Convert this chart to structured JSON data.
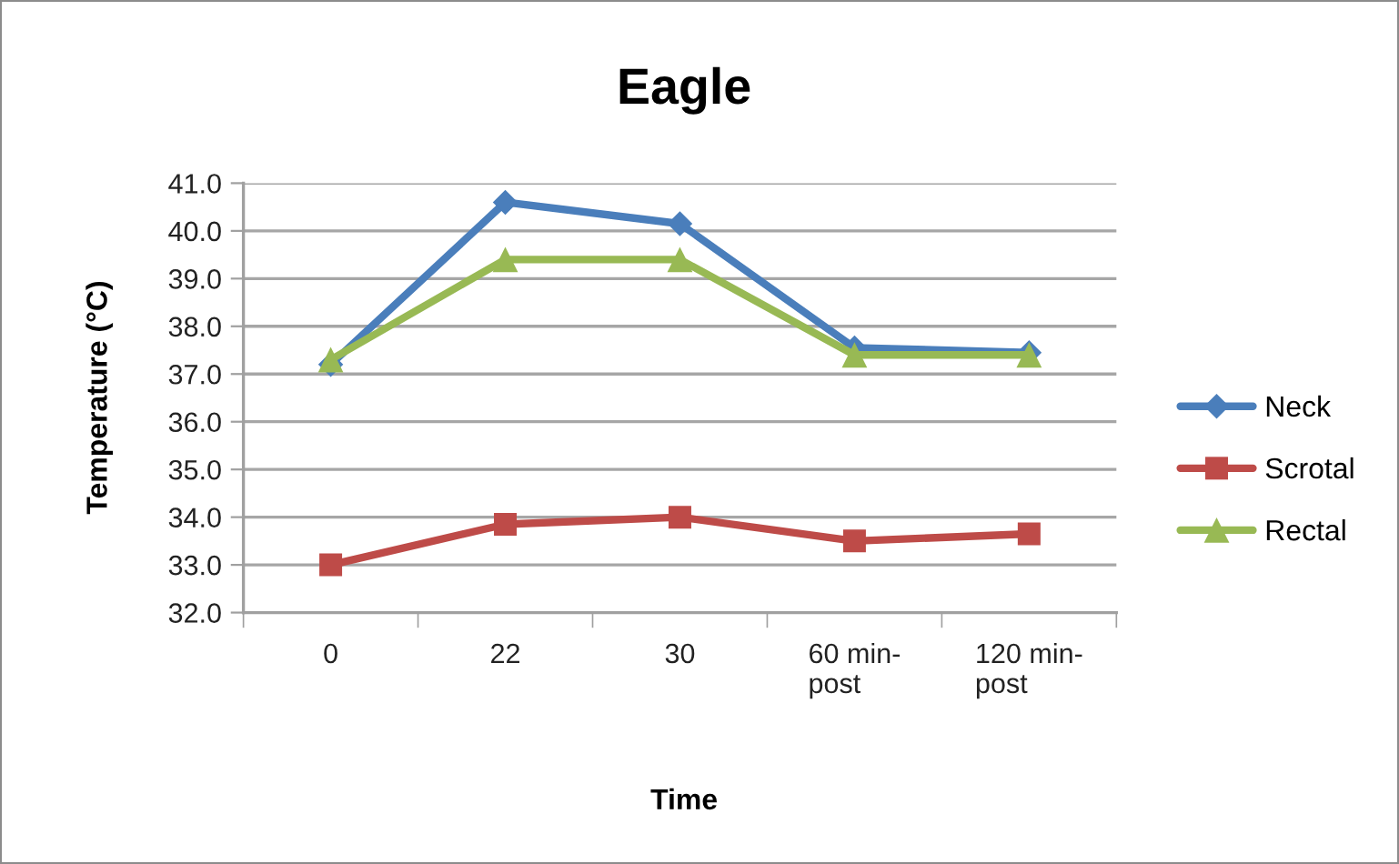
{
  "chart_data": {
    "type": "line",
    "title": "Eagle",
    "xlabel": "Time",
    "ylabel": "Temperature (°C)",
    "categories": [
      "0",
      "22",
      "30",
      "60 min-post",
      "120 min-post"
    ],
    "series": [
      {
        "name": "Neck",
        "color": "#4a7ebb",
        "marker": "diamond",
        "values": [
          37.2,
          40.6,
          40.15,
          37.55,
          37.45
        ]
      },
      {
        "name": "Scrotal",
        "color": "#be4b48",
        "marker": "square",
        "values": [
          33.0,
          33.85,
          34.0,
          33.5,
          33.65
        ]
      },
      {
        "name": "Rectal",
        "color": "#98b954",
        "marker": "triangle",
        "values": [
          37.3,
          39.4,
          39.4,
          37.4,
          37.4
        ]
      }
    ],
    "ylim": [
      32,
      41
    ],
    "yticks": [
      {
        "value": 32,
        "label": "32.0"
      },
      {
        "value": 33,
        "label": "33.0"
      },
      {
        "value": 34,
        "label": "34.0"
      },
      {
        "value": 35,
        "label": "35.0"
      },
      {
        "value": 36,
        "label": "36.0"
      },
      {
        "value": 37,
        "label": "37.0"
      },
      {
        "value": 38,
        "label": "38.0"
      },
      {
        "value": 39,
        "label": "39.0"
      },
      {
        "value": 40,
        "label": "40.0"
      },
      {
        "value": 41,
        "label": "41.0"
      }
    ],
    "grid": "y",
    "legend": "right",
    "line_style": "solid"
  }
}
